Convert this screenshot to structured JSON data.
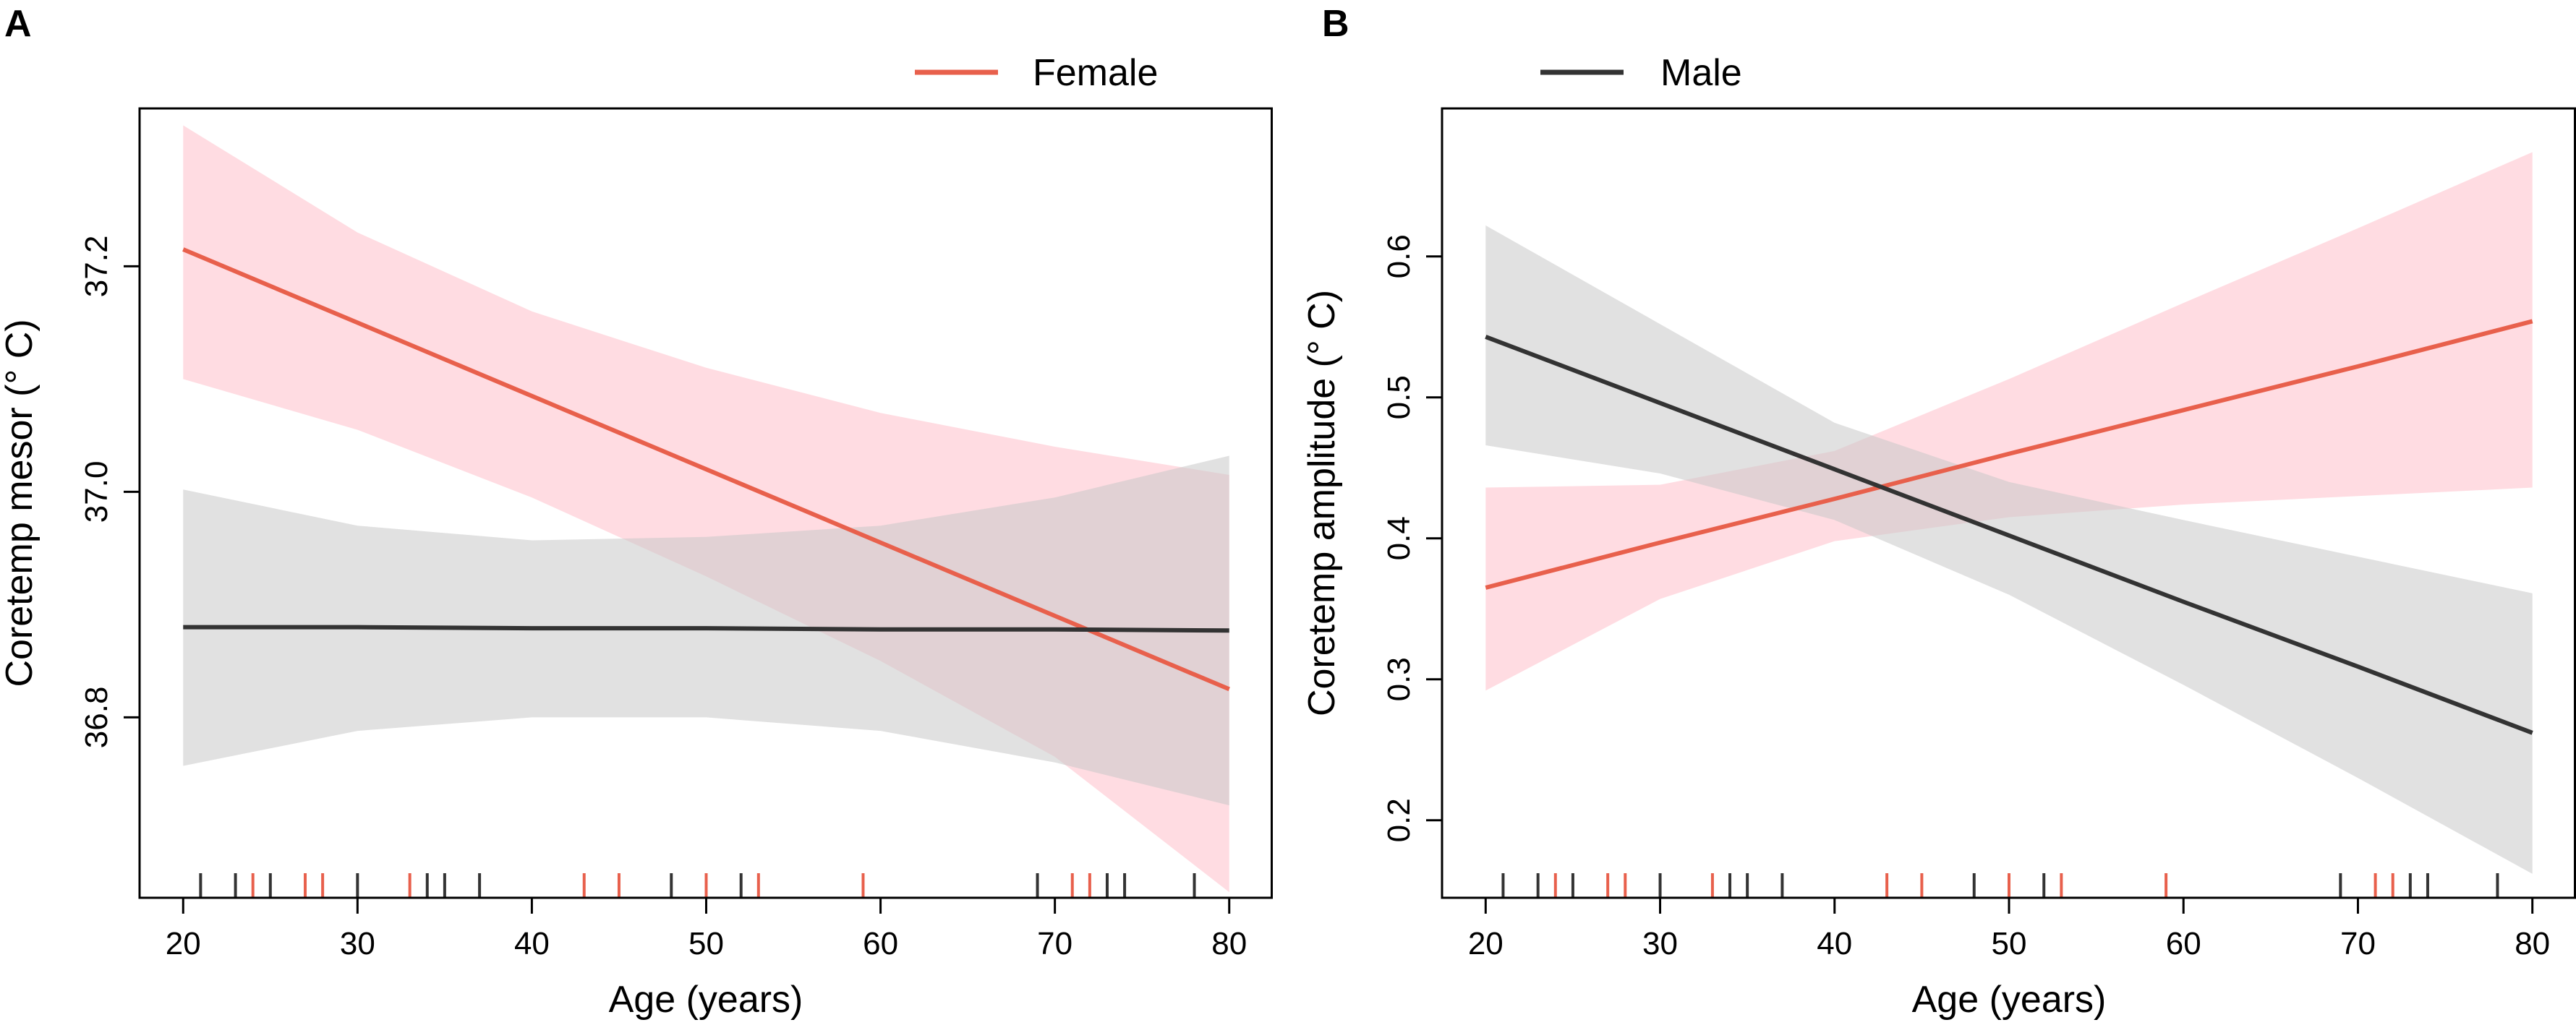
{
  "colors": {
    "female": "#E8604C",
    "male": "#333333",
    "female_band": "#FFC0CB",
    "male_band": "#C8C8C8"
  },
  "legend": {
    "female": {
      "label": "Female",
      "color": "#E8604C"
    },
    "male": {
      "label": "Male",
      "color": "#333333"
    }
  },
  "chart_data": [
    {
      "panel": "A",
      "type": "line",
      "title": "",
      "xlabel": "Age (years)",
      "ylabel": "Coretemp mesor (° C)",
      "xlim": [
        17.5,
        82.5
      ],
      "ylim": [
        36.64,
        37.34
      ],
      "xticks": [
        20,
        30,
        40,
        50,
        60,
        70,
        80
      ],
      "yticks": [
        36.8,
        37.0,
        37.2
      ],
      "xtick_labels": [
        "20",
        "30",
        "40",
        "50",
        "60",
        "70",
        "80"
      ],
      "ytick_labels": [
        "36.8",
        "37.0",
        "37.2"
      ],
      "legend_entry": "female",
      "series": [
        {
          "name": "Female",
          "x": [
            20,
            30,
            40,
            50,
            60,
            70,
            80
          ],
          "fit": [
            37.215,
            37.15,
            37.085,
            37.02,
            36.955,
            36.89,
            36.825
          ],
          "lower": [
            37.1,
            37.055,
            36.995,
            36.925,
            36.85,
            36.765,
            36.645
          ],
          "upper": [
            37.325,
            37.23,
            37.16,
            37.11,
            37.07,
            37.04,
            37.015
          ]
        },
        {
          "name": "Male",
          "x": [
            20,
            30,
            40,
            50,
            60,
            70,
            80
          ],
          "fit": [
            36.88,
            36.88,
            36.879,
            36.879,
            36.878,
            36.878,
            36.877
          ],
          "lower": [
            36.757,
            36.788,
            36.8,
            36.8,
            36.788,
            36.76,
            36.722
          ],
          "upper": [
            37.002,
            36.97,
            36.957,
            36.96,
            36.97,
            36.995,
            37.032
          ]
        }
      ],
      "rug": {
        "female": [
          24,
          27,
          28,
          33,
          43,
          45,
          50,
          53,
          59,
          71,
          72
        ],
        "male": [
          21,
          23,
          25,
          30,
          34,
          35,
          37,
          48,
          52,
          69,
          73,
          74,
          78
        ]
      }
    },
    {
      "panel": "B",
      "type": "line",
      "title": "",
      "xlabel": "Age (years)",
      "ylabel": "Coretemp amplitude (° C)",
      "xlim": [
        17.5,
        82.5
      ],
      "ylim": [
        0.145,
        0.705
      ],
      "xticks": [
        20,
        30,
        40,
        50,
        60,
        70,
        80
      ],
      "yticks": [
        0.2,
        0.3,
        0.4,
        0.5,
        0.6
      ],
      "xtick_labels": [
        "20",
        "30",
        "40",
        "50",
        "60",
        "70",
        "80"
      ],
      "ytick_labels": [
        "0.2",
        "0.3",
        "0.4",
        "0.5",
        "0.6"
      ],
      "legend_entry": "male",
      "series": [
        {
          "name": "Female",
          "x": [
            20,
            30,
            40,
            50,
            60,
            70,
            80
          ],
          "fit": [
            0.365,
            0.397,
            0.428,
            0.46,
            0.491,
            0.522,
            0.554
          ],
          "lower": [
            0.292,
            0.357,
            0.398,
            0.415,
            0.424,
            0.43,
            0.436
          ],
          "upper": [
            0.436,
            0.438,
            0.462,
            0.513,
            0.567,
            0.62,
            0.674
          ]
        },
        {
          "name": "Male",
          "x": [
            20,
            30,
            40,
            50,
            60,
            70,
            80
          ],
          "fit": [
            0.543,
            0.496,
            0.449,
            0.402,
            0.355,
            0.309,
            0.262
          ],
          "lower": [
            0.466,
            0.446,
            0.413,
            0.36,
            0.296,
            0.23,
            0.162
          ],
          "upper": [
            0.622,
            0.552,
            0.482,
            0.44,
            0.413,
            0.387,
            0.361
          ]
        }
      ],
      "rug": {
        "female": [
          24,
          27,
          28,
          33,
          43,
          45,
          50,
          53,
          59,
          71,
          72
        ],
        "male": [
          21,
          23,
          25,
          30,
          34,
          35,
          37,
          48,
          52,
          69,
          73,
          74,
          78
        ]
      }
    }
  ]
}
